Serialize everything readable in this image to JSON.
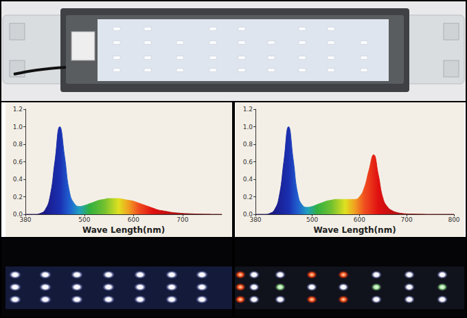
{
  "chart_data": [
    {
      "type": "line",
      "x_label": "Wave Length(nm)",
      "grid": false,
      "x": [
        380,
        390,
        400,
        410,
        420,
        430,
        440,
        450,
        460,
        470,
        480,
        490,
        500,
        510,
        520,
        530,
        540,
        550,
        560,
        570,
        580,
        590,
        600,
        610,
        620,
        630,
        640,
        650,
        660,
        670,
        680,
        690,
        700,
        710,
        720,
        730,
        740,
        750,
        760,
        770,
        780
      ],
      "values": [
        0,
        0,
        0,
        0.01,
        0.05,
        0.2,
        0.6,
        1.0,
        0.65,
        0.25,
        0.12,
        0.09,
        0.1,
        0.12,
        0.14,
        0.16,
        0.17,
        0.18,
        0.18,
        0.18,
        0.17,
        0.16,
        0.15,
        0.13,
        0.11,
        0.09,
        0.07,
        0.05,
        0.04,
        0.03,
        0.02,
        0.015,
        0.01,
        0.007,
        0.005,
        0.003,
        0.002,
        0.001,
        0,
        0,
        0
      ],
      "xlim": [
        380,
        780
      ],
      "xticks": [
        380,
        500,
        600,
        700
      ],
      "ylim": [
        0,
        1.2
      ],
      "yticks": [
        {
          "value": 0,
          "label": "0.0"
        },
        {
          "value": 0.2,
          "label": "0.2"
        },
        {
          "value": 0.4,
          "label": "0.4"
        },
        {
          "value": 0.6,
          "label": "0.6"
        },
        {
          "value": 0.8,
          "label": "0.8"
        },
        {
          "value": 1.0,
          "label": "1.0"
        },
        {
          "value": 1.2,
          "label": "1.2"
        }
      ]
    },
    {
      "type": "line",
      "x_label": "Wave Length(nm)",
      "grid": false,
      "x": [
        380,
        390,
        400,
        410,
        420,
        430,
        440,
        450,
        460,
        470,
        480,
        490,
        500,
        510,
        520,
        530,
        540,
        550,
        560,
        570,
        580,
        590,
        600,
        610,
        620,
        630,
        640,
        650,
        660,
        670,
        680,
        690,
        700,
        710,
        720,
        730,
        740,
        750,
        760,
        770,
        780,
        790,
        800
      ],
      "values": [
        0,
        0,
        0,
        0.01,
        0.05,
        0.2,
        0.6,
        1.0,
        0.62,
        0.22,
        0.1,
        0.08,
        0.09,
        0.11,
        0.13,
        0.15,
        0.16,
        0.17,
        0.17,
        0.17,
        0.17,
        0.17,
        0.2,
        0.3,
        0.5,
        0.68,
        0.45,
        0.18,
        0.08,
        0.04,
        0.02,
        0.01,
        0.005,
        0.003,
        0.002,
        0.001,
        0,
        0,
        0,
        0,
        0,
        0,
        0
      ],
      "xlim": [
        380,
        800
      ],
      "xticks": [
        380,
        500,
        600,
        700,
        800
      ],
      "ylim": [
        0,
        1.2
      ],
      "yticks": [
        {
          "value": 0,
          "label": "0.0"
        },
        {
          "value": 0.2,
          "label": "0.2"
        },
        {
          "value": 0.4,
          "label": "0.4"
        },
        {
          "value": 0.6,
          "label": "0.6"
        },
        {
          "value": 0.8,
          "label": "0.8"
        },
        {
          "value": 1.0,
          "label": "1.0"
        },
        {
          "value": 1.2,
          "label": "1.2"
        }
      ]
    }
  ]
}
